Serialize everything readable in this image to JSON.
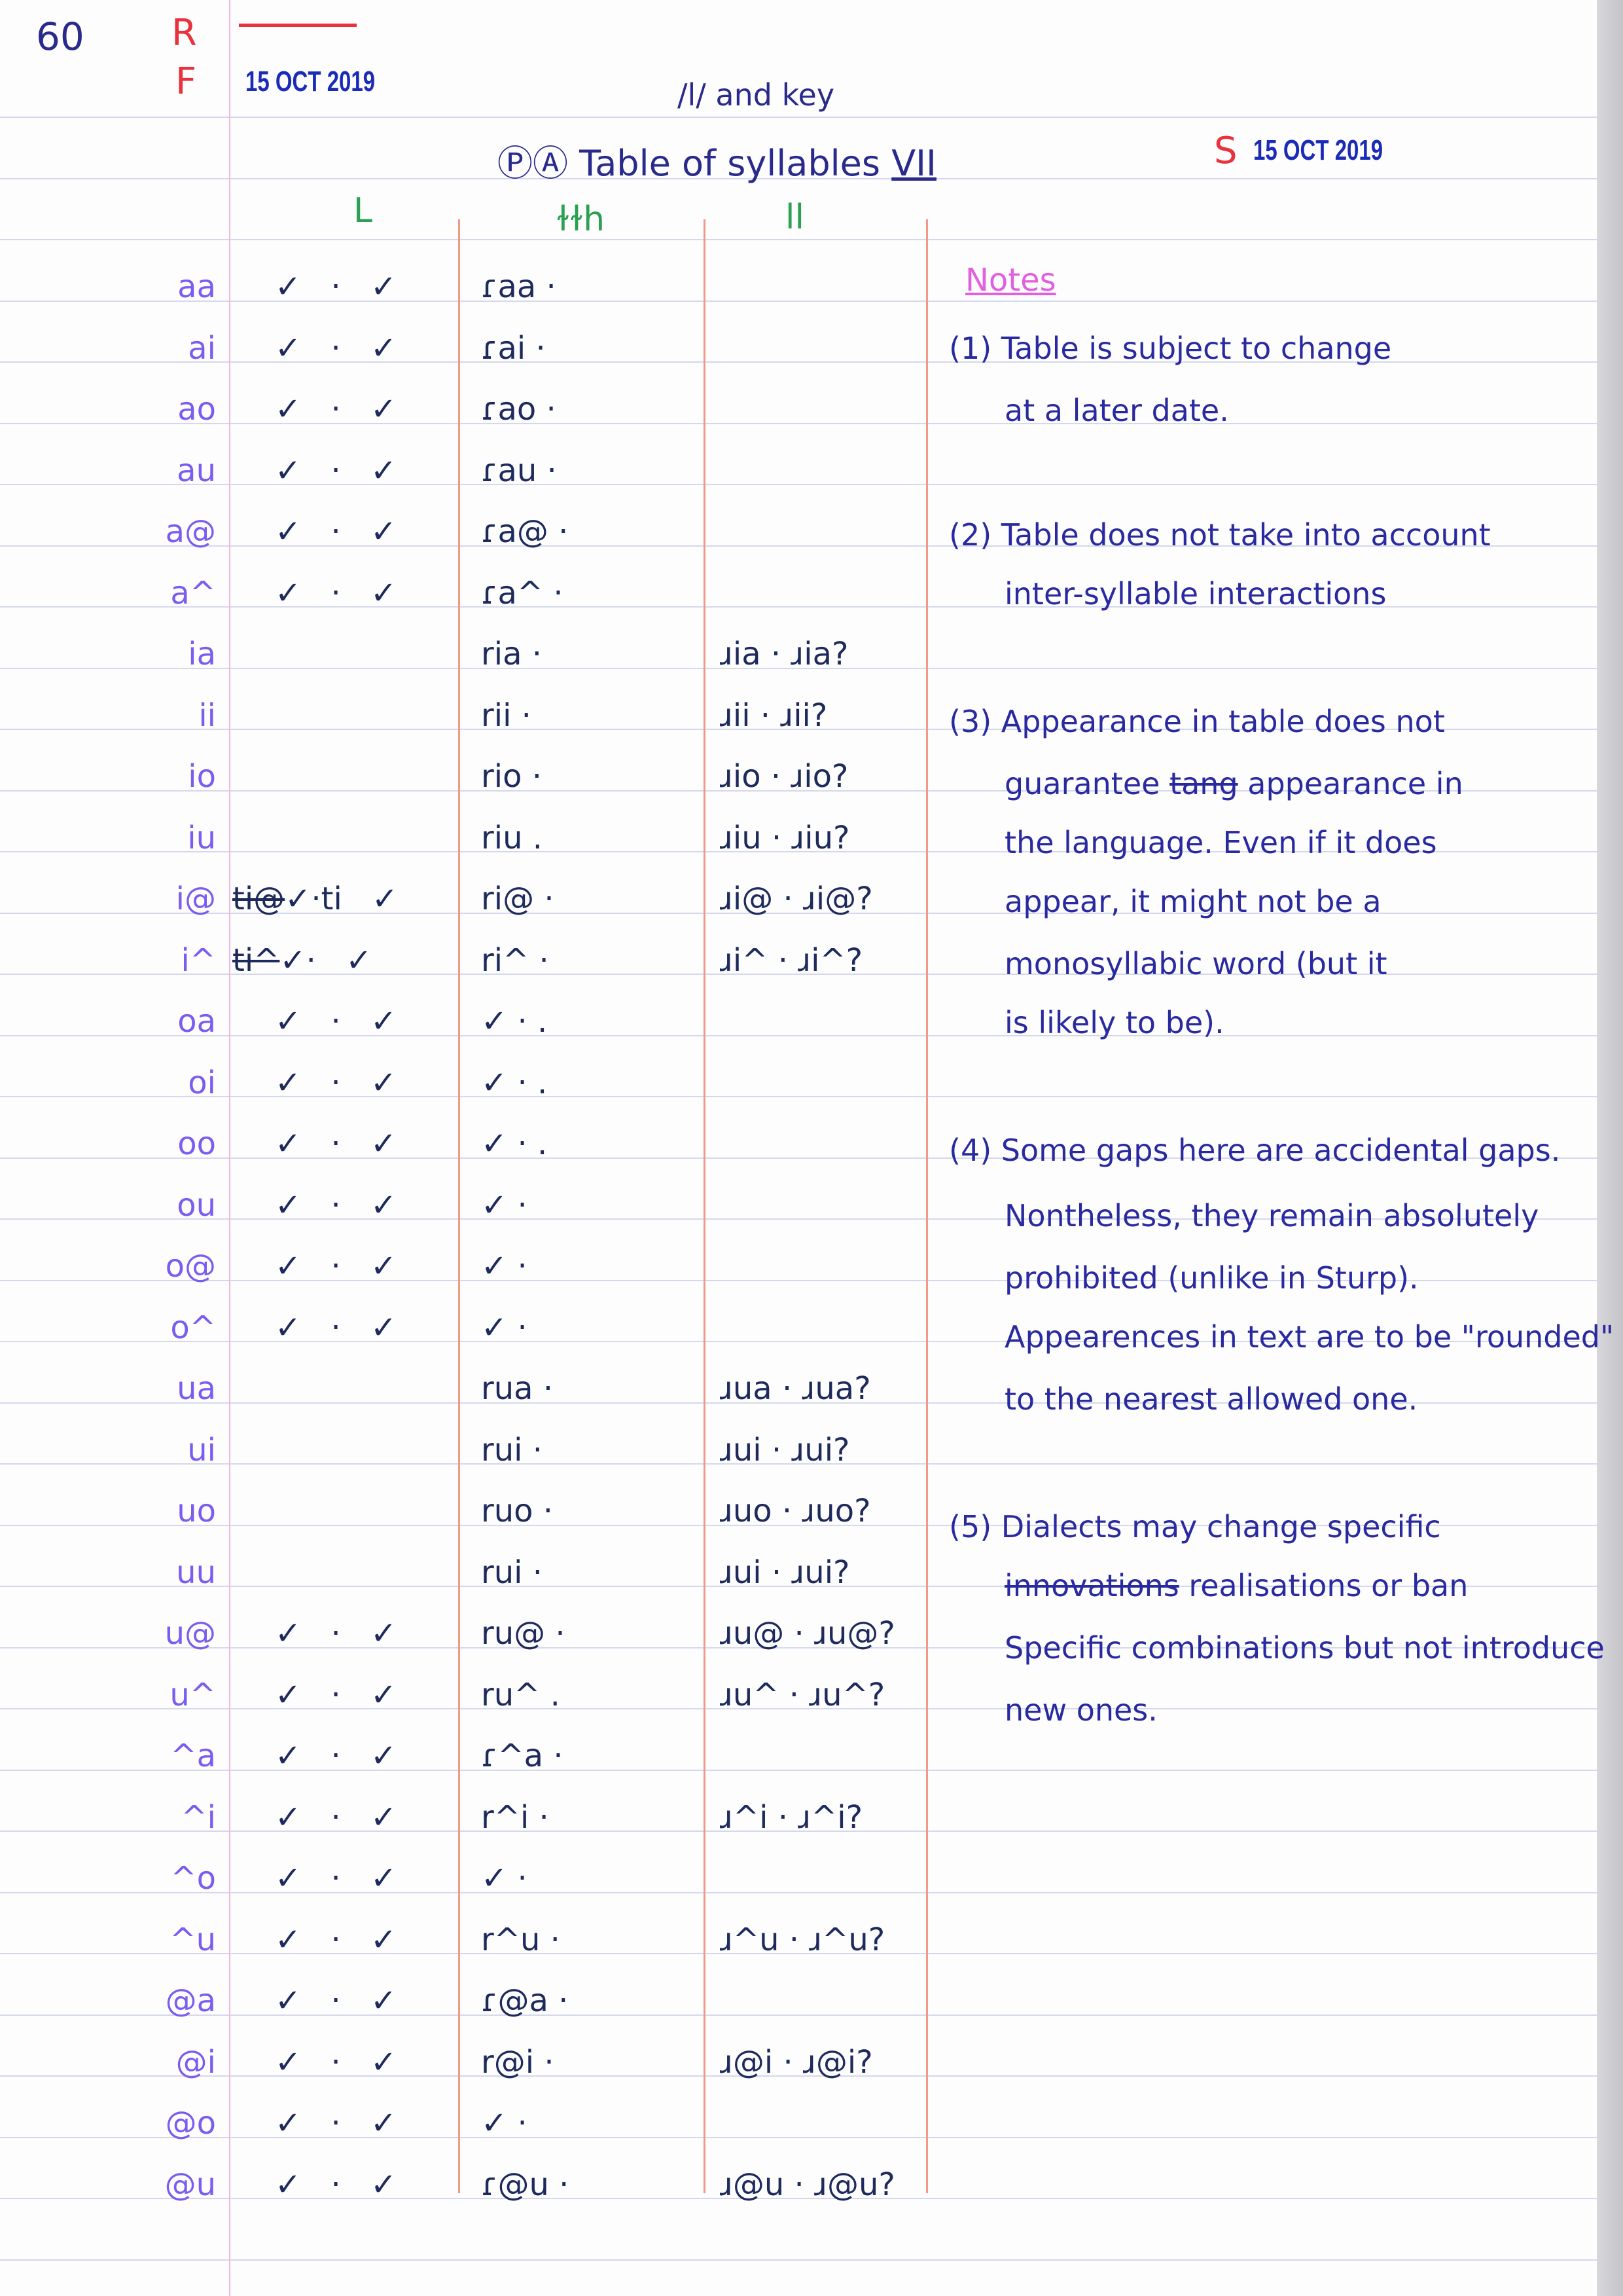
{
  "page_number": "60",
  "stamps": {
    "r": "R",
    "f": "F",
    "f_date": "15 OCT 2019",
    "s": "S",
    "s_date": "15 OCT 2019"
  },
  "title": {
    "line1": "/l/ and key",
    "prefix": "ⓅⒶ",
    "main": "Table of syllables",
    "numeral": "VII"
  },
  "columns": [
    "L",
    "ɫɫh",
    "ll"
  ],
  "rows": [
    {
      "label": "aa",
      "l": "✓ · ✓",
      "c2": "ɾaa ·",
      "c3": ""
    },
    {
      "label": "ai",
      "l": "✓ · ✓",
      "c2": "ɾai ·",
      "c3": ""
    },
    {
      "label": "ao",
      "l": "✓ · ✓",
      "c2": "ɾao ·",
      "c3": ""
    },
    {
      "label": "au",
      "l": "✓ · ✓",
      "c2": "ɾau ·",
      "c3": ""
    },
    {
      "label": "a@",
      "l": "✓ · ✓",
      "c2": "ɾa@ ·",
      "c3": ""
    },
    {
      "label": "a^",
      "l": "✓ · ✓",
      "c2": "ɾa^ ·",
      "c3": ""
    },
    {
      "label": "ia",
      "l": "",
      "c2": "ria ·",
      "c3": "ɹia · ɹia?"
    },
    {
      "label": "ii",
      "l": "",
      "c2": "rii ·",
      "c3": "ɹii · ɹii?"
    },
    {
      "label": "io",
      "l": "",
      "c2": "rio ·",
      "c3": "ɹio · ɹio?"
    },
    {
      "label": "iu",
      "l": "",
      "c2": "riu .",
      "c3": "ɹiu · ɹiu?"
    },
    {
      "label": "i@",
      "l_struck": "ti@",
      "l": "✓·ti ✓",
      "c2": "ri@ ·",
      "c3": "ɹi@ · ɹi@?"
    },
    {
      "label": "i^",
      "l_struck": "ti^",
      "l": "✓· ✓",
      "c2": "ri^ ·",
      "c3": "ɹi^ · ɹi^?"
    },
    {
      "label": "oa",
      "l": "✓ · ✓",
      "c2": "✓ · .",
      "c3": ""
    },
    {
      "label": "oi",
      "l": "✓ · ✓",
      "c2": "✓ · .",
      "c3": ""
    },
    {
      "label": "oo",
      "l": "✓ · ✓",
      "c2": "✓ · .",
      "c3": ""
    },
    {
      "label": "ou",
      "l": "✓ · ✓",
      "c2": "✓ ·",
      "c3": ""
    },
    {
      "label": "o@",
      "l": "✓ · ✓",
      "c2": "✓ ·",
      "c3": ""
    },
    {
      "label": "o^",
      "l": "✓ · ✓",
      "c2": "✓ ·",
      "c3": ""
    },
    {
      "label": "ua",
      "l": "",
      "c2": "rua ·",
      "c3": "ɹua · ɹua?"
    },
    {
      "label": "ui",
      "l": "",
      "c2": "rui ·",
      "c3": "ɹui · ɹui?"
    },
    {
      "label": "uo",
      "l": "",
      "c2": "ruo ·",
      "c3": "ɹuo · ɹuo?"
    },
    {
      "label": "uu",
      "l": "",
      "c2": "rui ·",
      "c3": "ɹui · ɹui?"
    },
    {
      "label": "u@",
      "l": "✓ · ✓",
      "c2": "ru@ ·",
      "c3": "ɹu@ · ɹu@?"
    },
    {
      "label": "u^",
      "l": "✓ · ✓",
      "c2": "ru^ .",
      "c3": "ɹu^ · ɹu^?"
    },
    {
      "label": "^a",
      "l": "✓ · ✓",
      "c2": "ɾ^a ·",
      "c3": ""
    },
    {
      "label": "^i",
      "l": "✓ · ✓",
      "c2": "r^i ·",
      "c3": "ɹ^i · ɹ^i?"
    },
    {
      "label": "^o",
      "l": "✓ · ✓",
      "c2": "✓ ·",
      "c3": ""
    },
    {
      "label": "^u",
      "l": "✓ · ✓",
      "c2": "r^u ·",
      "c3": "ɹ^u · ɹ^u?"
    },
    {
      "label": "@a",
      "l": "✓ · ✓",
      "c2": "ɾ@a ·",
      "c3": ""
    },
    {
      "label": "@i",
      "l": "✓ · ✓",
      "c2": "r@i ·",
      "c3": "ɹ@i · ɹ@i?"
    },
    {
      "label": "@o",
      "l": "✓ · ✓",
      "c2": "✓ ·",
      "c3": ""
    },
    {
      "label": "@u",
      "l": "✓ · ✓",
      "c2": "ɾ@u ·",
      "c3": "ɹ@u · ɹ@u?"
    }
  ],
  "notes": {
    "title": "Notes",
    "lines": [
      {
        "pre": "(1) Table is subject to change",
        "struck": "",
        "text": ""
      },
      {
        "pre": "at a later date.",
        "struck": "",
        "text": ""
      },
      {
        "pre": "(2) Table does not take into account",
        "struck": "",
        "text": ""
      },
      {
        "pre": "inter-syllable interactions",
        "struck": "",
        "text": ""
      },
      {
        "pre": "(3) Appearance in table does not",
        "struck": "",
        "text": ""
      },
      {
        "pre": "guarantee ",
        "struck": "tang",
        "text": " appearance in"
      },
      {
        "pre": "the language. Even if it does",
        "struck": "",
        "text": ""
      },
      {
        "pre": "appear, it might not be a",
        "struck": "",
        "text": ""
      },
      {
        "pre": "monosyllabic word (but it",
        "struck": "",
        "text": ""
      },
      {
        "pre": "is likely to be).",
        "struck": "",
        "text": ""
      },
      {
        "pre": "(4) Some gaps here are accidental gaps.",
        "struck": "",
        "text": ""
      },
      {
        "pre": "Nontheless, they remain absolutely",
        "struck": "",
        "text": ""
      },
      {
        "pre": "prohibited (unlike in Sturp).",
        "struck": "",
        "text": ""
      },
      {
        "pre": "Appearences in text are to be \"rounded\"",
        "struck": "",
        "text": ""
      },
      {
        "pre": "to the nearest allowed one.",
        "struck": "",
        "text": ""
      },
      {
        "pre": "(5) Dialects may change specific",
        "struck": "",
        "text": ""
      },
      {
        "pre": "",
        "struck": "innovations",
        "text": " realisations or ban"
      },
      {
        "pre": "Specific combinations but not introduce",
        "struck": "",
        "text": ""
      },
      {
        "pre": "new ones.",
        "struck": "",
        "text": ""
      }
    ]
  },
  "colors": {
    "ink": "#2a2a8c",
    "stamp": "#1a2bb8",
    "red": "#e8323c",
    "label": "#7a5cf0",
    "green": "#2aa050",
    "notes_title": "#e060e0",
    "column_line": "#f09a8a"
  }
}
